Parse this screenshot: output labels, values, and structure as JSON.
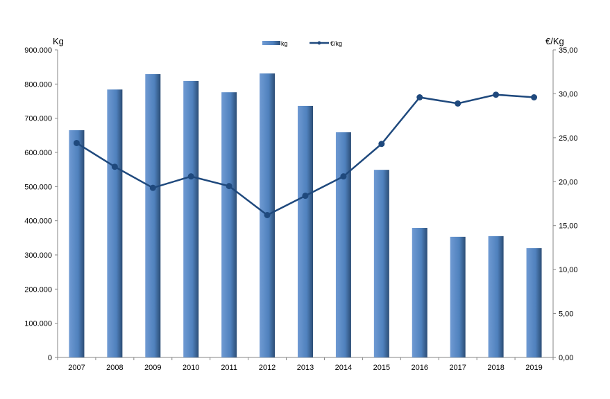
{
  "chart_data": {
    "type": "bar+line",
    "categories": [
      "2007",
      "2008",
      "2009",
      "2010",
      "2011",
      "2012",
      "2013",
      "2014",
      "2015",
      "2016",
      "2017",
      "2018",
      "2019"
    ],
    "series": [
      {
        "name": "kg",
        "type": "bar",
        "axis": "left",
        "values": [
          665000,
          784000,
          829000,
          809000,
          776000,
          831000,
          736000,
          659000,
          549000,
          379000,
          353000,
          355000,
          320000
        ]
      },
      {
        "name": "€/kg",
        "type": "line",
        "axis": "right",
        "values": [
          24.4,
          21.7,
          19.3,
          20.6,
          19.5,
          16.2,
          18.4,
          20.6,
          24.3,
          29.6,
          28.9,
          29.9,
          29.6
        ]
      }
    ],
    "left_axis": {
      "label": "Kg",
      "ylim": [
        0,
        900000
      ],
      "ticks": [
        "0",
        "100.000",
        "200.000",
        "300.000",
        "400.000",
        "500.000",
        "600.000",
        "700.000",
        "800.000",
        "900.000"
      ]
    },
    "right_axis": {
      "label": "€/Kg",
      "ylim": [
        0,
        35
      ],
      "ticks": [
        "0,00",
        "5,00",
        "10,00",
        "15,00",
        "20,00",
        "25,00",
        "30,00",
        "35,00"
      ]
    },
    "legend": {
      "placement": "top-center",
      "items": [
        "kg",
        "€/kg"
      ]
    },
    "colors": {
      "bar": "#4f81bd",
      "bar_edge": "#2c4d75",
      "line": "#1f497d"
    },
    "grid": false
  }
}
